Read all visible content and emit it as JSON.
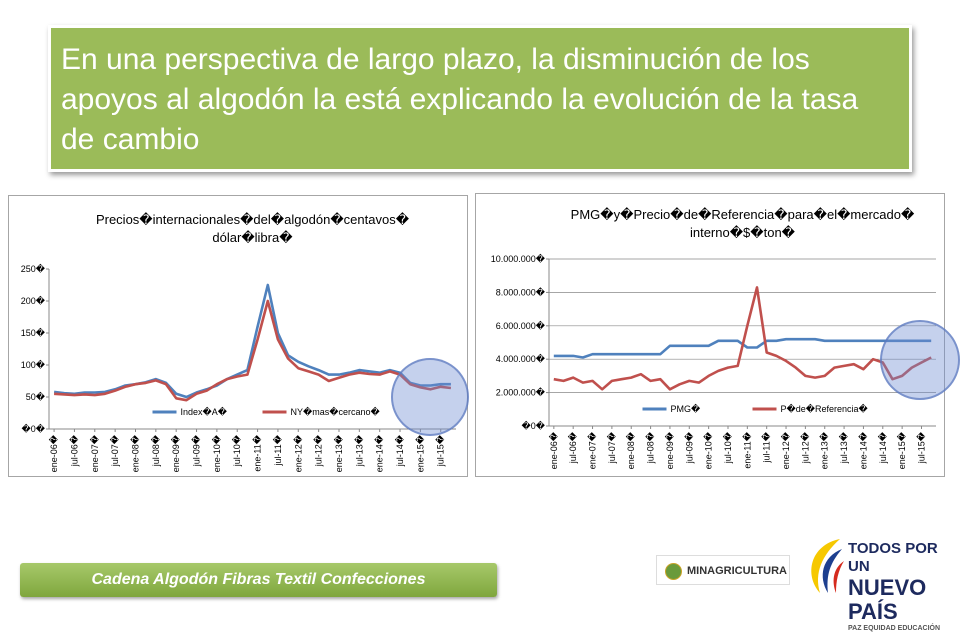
{
  "header": {
    "title": "En una perspectiva de largo plazo, la disminución de los apoyos al algodón la está explicando la evolución de la tasa de cambio"
  },
  "footer": {
    "label": "Cadena Algodón Fibras Textil Confecciones"
  },
  "logos": {
    "ministry": "MINAGRICULTURA",
    "slogan_top": "TODOS POR UN",
    "slogan_main": "NUEVO PAÍS",
    "slogan_sub": "PAZ  EQUIDAD  EDUCACIÓN"
  },
  "chart_data": [
    {
      "type": "line",
      "title": [
        "Precios�internacionales�del�algodón�centavos�",
        "dólar�libra�"
      ],
      "categories": [
        "ene-06�",
        null,
        "jul-06�",
        null,
        "ene-07�",
        null,
        "jul-07�",
        null,
        "ene-08�",
        null,
        "jul-08�",
        null,
        "ene-09�",
        null,
        "jul-09�",
        null,
        "ene-10�",
        null,
        "jul-10�",
        null,
        "ene-11�",
        null,
        "jul-11�",
        null,
        "ene-12�",
        null,
        "jul-12�",
        null,
        "ene-13�",
        null,
        "jul-13�",
        null,
        "ene-14�",
        null,
        "jul-14�",
        null,
        "ene-15�",
        null,
        "jul-15�",
        null
      ],
      "series": [
        {
          "name": "Index�A�",
          "color": "#4f81bd",
          "values": [
            58,
            56,
            55,
            57,
            57,
            58,
            62,
            68,
            70,
            73,
            78,
            72,
            55,
            50,
            57,
            62,
            68,
            78,
            85,
            92,
            160,
            225,
            150,
            115,
            105,
            98,
            92,
            85,
            85,
            88,
            92,
            90,
            88,
            92,
            88,
            72,
            68,
            68,
            70,
            70
          ]
        },
        {
          "name": "NY�mas�cercano�",
          "color": "#c0504d",
          "values": [
            55,
            54,
            53,
            54,
            53,
            55,
            60,
            66,
            70,
            72,
            76,
            70,
            48,
            45,
            55,
            60,
            70,
            78,
            82,
            85,
            140,
            200,
            140,
            110,
            95,
            90,
            85,
            75,
            80,
            85,
            88,
            86,
            85,
            90,
            85,
            70,
            65,
            62,
            66,
            64
          ]
        }
      ],
      "ylim": [
        0,
        250
      ],
      "yticks": [
        {
          "value": 0,
          "label": "�0�"
        },
        {
          "value": 50,
          "label": "50�"
        },
        {
          "value": 100,
          "label": "100�"
        },
        {
          "value": 150,
          "label": "150�"
        },
        {
          "value": 200,
          "label": "200�"
        },
        {
          "value": 250,
          "label": "250�"
        }
      ],
      "grid": false,
      "legend": "bottom"
    },
    {
      "type": "line",
      "title": [
        "PMG�y�Precio�de�Referencia�para�el�mercado�",
        "interno�$�ton�"
      ],
      "categories": [
        "ene-06�",
        null,
        "jul-06�",
        null,
        "ene-07�",
        null,
        "jul-07�",
        null,
        "ene-08�",
        null,
        "jul-08�",
        null,
        "ene-09�",
        null,
        "jul-09�",
        null,
        "ene-10�",
        null,
        "jul-10�",
        null,
        "ene-11�",
        null,
        "jul-11�",
        null,
        "ene-12�",
        null,
        "jul-12�",
        null,
        "ene-13�",
        null,
        "jul-13�",
        null,
        "ene-14�",
        null,
        "jul-14�",
        null,
        "ene-15�",
        null,
        "jul-15�",
        null
      ],
      "series": [
        {
          "name": "PMG�",
          "color": "#4f81bd",
          "values": [
            4200000,
            4200000,
            4200000,
            4100000,
            4300000,
            4300000,
            4300000,
            4300000,
            4300000,
            4300000,
            4300000,
            4300000,
            4800000,
            4800000,
            4800000,
            4800000,
            4800000,
            5100000,
            5100000,
            5100000,
            4700000,
            4700000,
            5100000,
            5100000,
            5200000,
            5200000,
            5200000,
            5200000,
            5100000,
            5100000,
            5100000,
            5100000,
            5100000,
            5100000,
            5100000,
            5100000,
            5100000,
            5100000,
            5100000,
            5100000
          ]
        },
        {
          "name": "P�de�Referencia�",
          "color": "#c0504d",
          "values": [
            2800000,
            2700000,
            2900000,
            2600000,
            2700000,
            2200000,
            2700000,
            2800000,
            2900000,
            3100000,
            2700000,
            2800000,
            2200000,
            2500000,
            2700000,
            2600000,
            3000000,
            3300000,
            3500000,
            3600000,
            6000000,
            8300000,
            4400000,
            4200000,
            3900000,
            3500000,
            3000000,
            2900000,
            3000000,
            3500000,
            3600000,
            3700000,
            3400000,
            4000000,
            3800000,
            2800000,
            3000000,
            3500000,
            3800000,
            4100000
          ]
        }
      ],
      "ylim": [
        0,
        10000000
      ],
      "yticks": [
        {
          "value": 0,
          "label": "�0�"
        },
        {
          "value": 2000000,
          "label": "2.000.000�"
        },
        {
          "value": 4000000,
          "label": "4.000.000�"
        },
        {
          "value": 6000000,
          "label": "6.000.000�"
        },
        {
          "value": 8000000,
          "label": "8.000.000�"
        },
        {
          "value": 10000000,
          "label": "10.000.000�"
        }
      ],
      "grid": true,
      "legend": "bottom"
    }
  ]
}
